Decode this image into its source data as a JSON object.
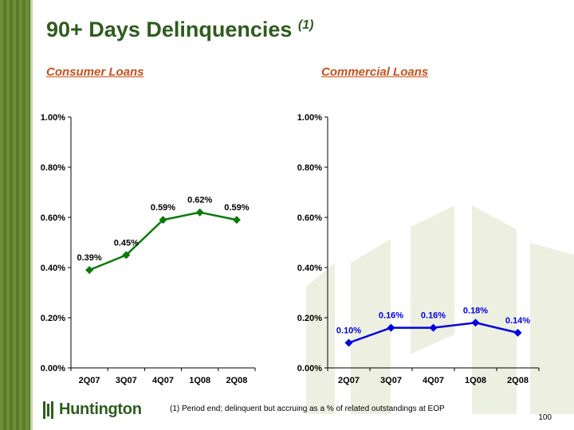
{
  "title": "90+ Days Delinquencies",
  "title_footnote_marker": "(1)",
  "brand": {
    "name": "Huntington",
    "color_primary": "#2e5c1e",
    "color_subtitle": "#c8511e"
  },
  "footnote": "(1) Period end; delinquent but accruing as a % of related outstandings at EOP",
  "page_number": "100",
  "chart_data": [
    {
      "type": "line",
      "title": "Consumer Loans",
      "categories": [
        "2Q07",
        "3Q07",
        "4Q07",
        "1Q08",
        "2Q08"
      ],
      "values": [
        0.39,
        0.45,
        0.59,
        0.62,
        0.59
      ],
      "data_labels": [
        "0.39%",
        "0.45%",
        "0.59%",
        "0.62%",
        "0.59%"
      ],
      "ylim": [
        0,
        1.0
      ],
      "yticks": [
        0,
        0.2,
        0.4,
        0.6,
        0.8,
        1.0
      ],
      "ytick_labels": [
        "0.00%",
        "0.20%",
        "0.40%",
        "0.60%",
        "0.80%",
        "1.00%"
      ],
      "xlabel": "",
      "ylabel": "",
      "color": "#0a7a0a",
      "label_color": "#000000",
      "marker": "diamond"
    },
    {
      "type": "line",
      "title": "Commercial Loans",
      "categories": [
        "2Q07",
        "3Q07",
        "4Q07",
        "1Q08",
        "2Q08"
      ],
      "values": [
        0.1,
        0.16,
        0.16,
        0.18,
        0.14
      ],
      "data_labels": [
        "0.10%",
        "0.16%",
        "0.16%",
        "0.18%",
        "0.14%"
      ],
      "ylim": [
        0,
        1.0
      ],
      "yticks": [
        0,
        0.2,
        0.4,
        0.6,
        0.8,
        1.0
      ],
      "ytick_labels": [
        "0.00%",
        "0.20%",
        "0.40%",
        "0.60%",
        "0.80%",
        "1.00%"
      ],
      "xlabel": "",
      "ylabel": "",
      "color": "#0000e0",
      "label_color": "#0000e0",
      "marker": "diamond"
    }
  ]
}
